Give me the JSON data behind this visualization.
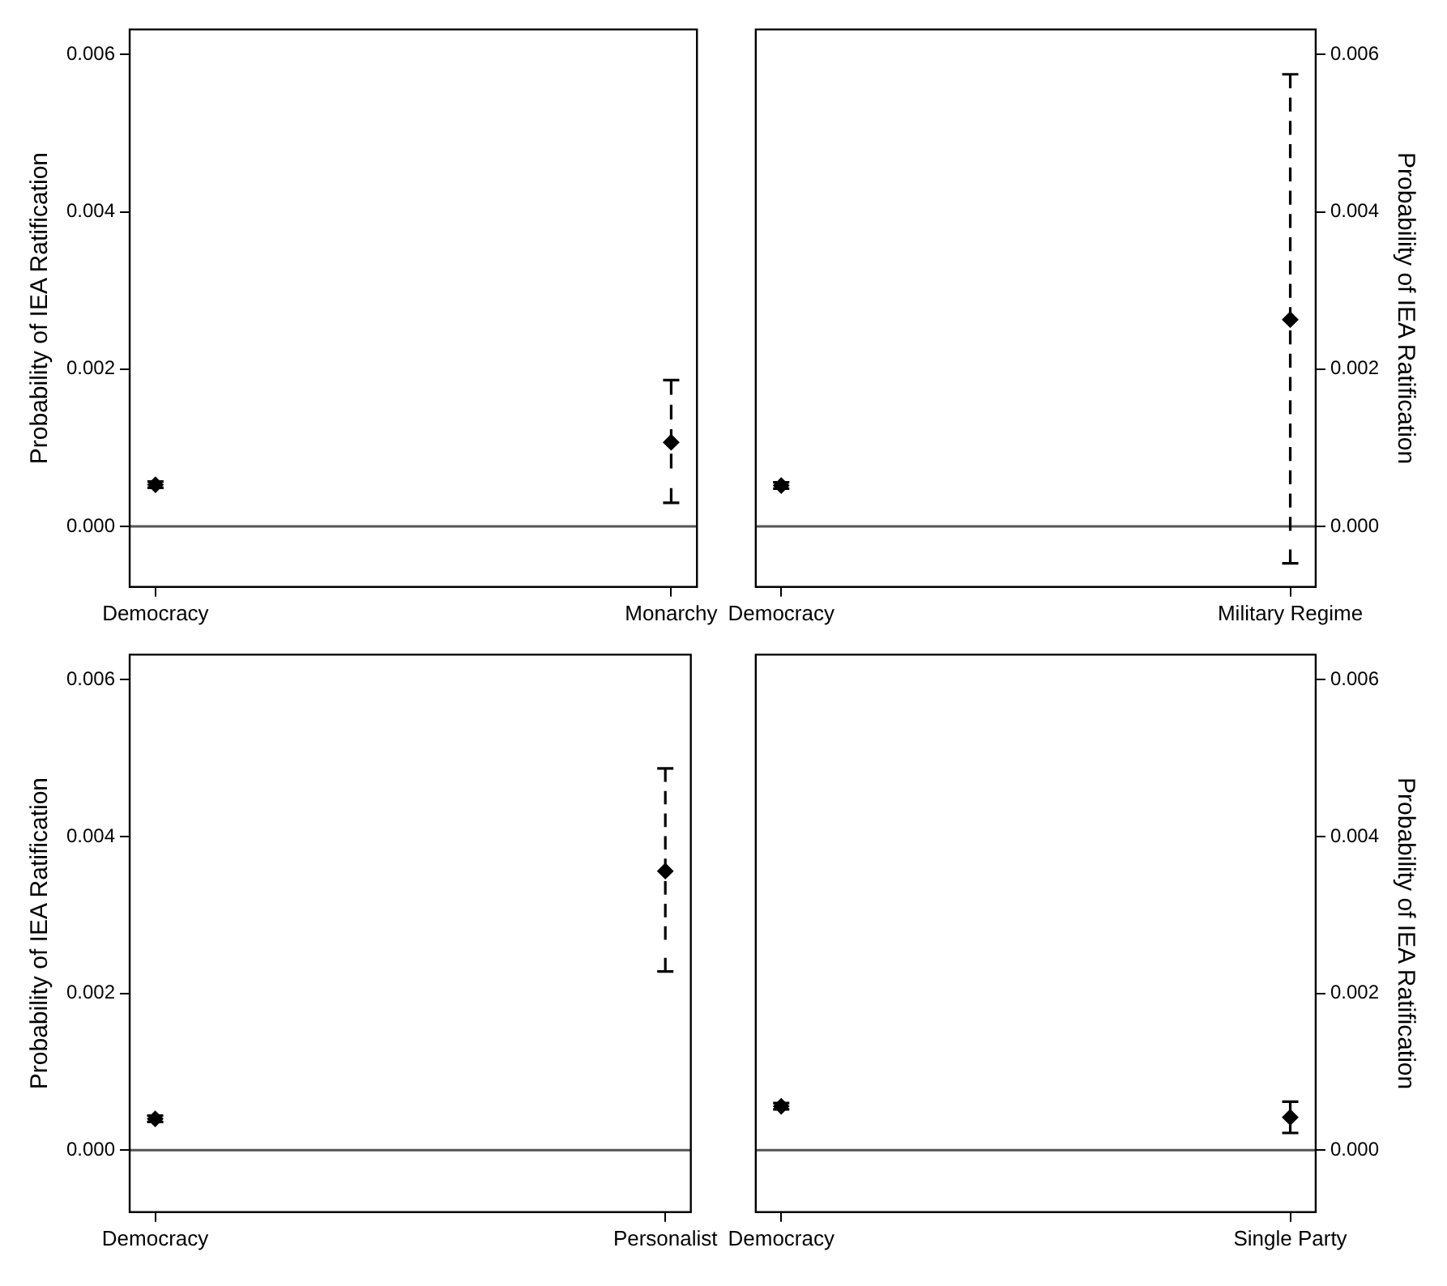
{
  "chart_data": [
    {
      "type": "scatter",
      "ylabel": "Probability of IEA Ratification",
      "categories": [
        "Democracy",
        "Monarchy"
      ],
      "ylim": [
        -0.00077,
        0.00632
      ],
      "yticks": [
        {
          "value": 0,
          "label": "0.000"
        },
        0.002,
        0.004,
        0.006
      ],
      "marker": "diamond",
      "series": [
        {
          "color": "#000000",
          "values": [
            0.00053,
            0.00107
          ],
          "errors": [
            [
              0.00049,
              0.00057
            ],
            [
              0.0003,
              0.00186
            ]
          ]
        }
      ],
      "ref_lines": [
        {
          "axis": "y",
          "value": 0,
          "color": "#555555"
        }
      ]
    },
    {
      "type": "scatter",
      "y2label": "Probability of IEA Ratification",
      "categories": [
        "Democracy",
        "Military Regime"
      ],
      "y2lim": [
        -0.00077,
        0.00632
      ],
      "y2ticks": [
        {
          "value": 0,
          "label": "0.000"
        },
        0.002,
        0.004,
        0.006
      ],
      "marker": "diamond",
      "series": [
        {
          "color": "#000000",
          "axis": "y2",
          "values": [
            0.00052,
            0.00263
          ],
          "errors": [
            [
              0.00048,
              0.00056
            ],
            [
              -0.00047,
              0.00575
            ]
          ]
        }
      ],
      "ref_lines": [
        {
          "axis": "y2",
          "value": 0,
          "color": "#555555"
        }
      ]
    },
    {
      "type": "scatter",
      "ylabel": "Probability of IEA Ratification",
      "categories": [
        "Democracy",
        "Personalist"
      ],
      "ylim": [
        -0.00079,
        0.00632
      ],
      "yticks": [
        {
          "value": 0,
          "label": "0.000"
        },
        0.002,
        0.004,
        0.006
      ],
      "marker": "diamond",
      "series": [
        {
          "color": "#000000",
          "values": [
            0.0004,
            0.00356
          ],
          "errors": [
            [
              0.00036,
              0.00044
            ],
            [
              0.00228,
              0.00487
            ]
          ]
        }
      ],
      "ref_lines": [
        {
          "axis": "y",
          "value": 0,
          "color": "#555555"
        }
      ]
    },
    {
      "type": "scatter",
      "y2label": "Probability of IEA Ratification",
      "categories": [
        "Democracy",
        "Single Party"
      ],
      "y2lim": [
        -0.00079,
        0.00632
      ],
      "y2ticks": [
        {
          "value": 0,
          "label": "0.000"
        },
        0.002,
        0.004,
        0.006
      ],
      "marker": "diamond",
      "series": [
        {
          "color": "#000000",
          "axis": "y2",
          "values": [
            0.00056,
            0.00042
          ],
          "errors": [
            [
              0.00052,
              0.0006
            ],
            [
              0.00022,
              0.00062
            ]
          ]
        }
      ],
      "ref_lines": [
        {
          "axis": "y2",
          "value": 0,
          "color": "#555555"
        }
      ]
    }
  ]
}
